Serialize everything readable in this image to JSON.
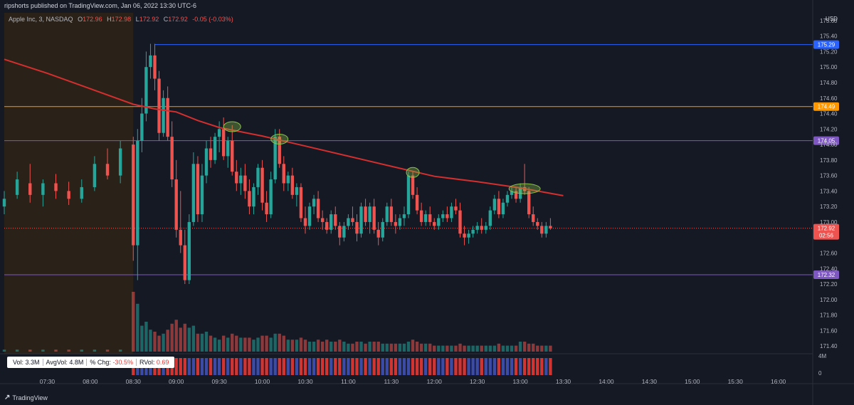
{
  "header": {
    "publisher": "ripshorts published on TradingView.com, Jan 06, 2022 13:30 UTC-6"
  },
  "legend": {
    "symbol": "Apple Inc, 3, NASDAQ",
    "open_key": "O",
    "open": "172.96",
    "high_key": "H",
    "high": "172.98",
    "low_key": "L",
    "low": "172.92",
    "close_key": "C",
    "close": "172.92",
    "change": "-0.05 (-0.03%)"
  },
  "currency": "USD",
  "stats": {
    "vol": "Vol:  3.3M",
    "avgvol": "AvgVol:  4.8M",
    "pct_chg_key": "% Chg:",
    "pct_chg": "-30.5%",
    "rvol_key": "RVol:",
    "rvol": "0.69"
  },
  "brand": {
    "icon": "tradingview-logo-icon",
    "name": "TradingView"
  },
  "colors": {
    "up": "#26a69a",
    "down": "#ef5350",
    "ma": "#d32f2f",
    "blue_line": "#2962ff",
    "orange_line": "#ff9800",
    "purple_line": "#7e57c2",
    "premarket": "#2a2218",
    "highlight": "#8bc34a"
  },
  "chart_data": {
    "type": "candlestick",
    "title": "Apple Inc, 3, NASDAQ",
    "y_axis": {
      "ylim": [
        171.3,
        175.7
      ],
      "ticks": [
        "175.60",
        "175.40",
        "175.20",
        "175.00",
        "174.80",
        "174.60",
        "174.40",
        "174.20",
        "174.00",
        "173.80",
        "173.60",
        "173.40",
        "173.20",
        "173.00",
        "172.60",
        "172.40",
        "172.20",
        "172.00",
        "171.80",
        "171.60",
        "171.40"
      ]
    },
    "x_axis": {
      "ticks": [
        "07:30",
        "08:00",
        "08:30",
        "09:00",
        "09:30",
        "10:00",
        "10:30",
        "11:00",
        "11:30",
        "12:00",
        "12:30",
        "13:00",
        "13:30",
        "14:00",
        "14:30",
        "15:00",
        "15:30",
        "16:00"
      ]
    },
    "horizontal_levels": [
      {
        "price": 175.29,
        "label": "175.29",
        "color": "#2962ff"
      },
      {
        "price": 174.49,
        "label": "174.49",
        "color": "#ff9800"
      },
      {
        "price": 174.05,
        "label": "174.05",
        "color": "#7e57c2"
      },
      {
        "price": 172.32,
        "label": "172.32",
        "color": "#7e57c2"
      }
    ],
    "last_price": {
      "price": 172.92,
      "label": "172.92",
      "countdown": "02:56"
    },
    "volume_axis": {
      "max_label": "4M",
      "min_label": "0"
    },
    "moving_average": [
      {
        "t": "07:00",
        "v": 175.1
      },
      {
        "t": "07:30",
        "v": 174.92
      },
      {
        "t": "08:00",
        "v": 174.72
      },
      {
        "t": "08:30",
        "v": 174.52
      },
      {
        "t": "08:45",
        "v": 174.46
      },
      {
        "t": "09:00",
        "v": 174.42
      },
      {
        "t": "09:15",
        "v": 174.31
      },
      {
        "t": "09:30",
        "v": 174.22
      },
      {
        "t": "10:00",
        "v": 174.11
      },
      {
        "t": "10:30",
        "v": 173.98
      },
      {
        "t": "11:00",
        "v": 173.85
      },
      {
        "t": "11:30",
        "v": 173.72
      },
      {
        "t": "12:00",
        "v": 173.59
      },
      {
        "t": "12:30",
        "v": 173.52
      },
      {
        "t": "13:00",
        "v": 173.44
      },
      {
        "t": "13:30",
        "v": 173.34
      }
    ],
    "highlight_touches": [
      {
        "t": "09:39",
        "price": 174.23
      },
      {
        "t": "10:12",
        "price": 174.07
      },
      {
        "t": "11:45",
        "price": 173.64
      },
      {
        "t": "13:03",
        "price": 173.43
      }
    ],
    "candles": [
      {
        "t": "07:00",
        "o": 173.2,
        "h": 173.4,
        "l": 173.1,
        "c": 173.3,
        "v": 0.1
      },
      {
        "t": "07:09",
        "o": 173.35,
        "h": 173.65,
        "l": 173.3,
        "c": 173.55,
        "v": 0.1
      },
      {
        "t": "07:18",
        "o": 173.5,
        "h": 173.75,
        "l": 173.25,
        "c": 173.35,
        "v": 0.1
      },
      {
        "t": "07:27",
        "o": 173.35,
        "h": 173.55,
        "l": 173.2,
        "c": 173.5,
        "v": 0.1
      },
      {
        "t": "07:36",
        "o": 173.5,
        "h": 173.62,
        "l": 173.3,
        "c": 173.4,
        "v": 0.1
      },
      {
        "t": "07:45",
        "o": 173.4,
        "h": 173.52,
        "l": 173.22,
        "c": 173.3,
        "v": 0.1
      },
      {
        "t": "07:54",
        "o": 173.3,
        "h": 173.55,
        "l": 173.25,
        "c": 173.45,
        "v": 0.1
      },
      {
        "t": "08:03",
        "o": 173.45,
        "h": 173.85,
        "l": 173.4,
        "c": 173.75,
        "v": 0.1
      },
      {
        "t": "08:12",
        "o": 173.75,
        "h": 173.95,
        "l": 173.55,
        "c": 173.6,
        "v": 0.1
      },
      {
        "t": "08:21",
        "o": 173.6,
        "h": 174.05,
        "l": 173.5,
        "c": 173.95,
        "v": 0.1
      },
      {
        "t": "08:30",
        "o": 174.0,
        "h": 174.1,
        "l": 172.5,
        "c": 172.7,
        "v": 3.0
      },
      {
        "t": "08:33",
        "o": 172.7,
        "h": 174.2,
        "l": 172.25,
        "c": 174.05,
        "v": 2.4
      },
      {
        "t": "08:36",
        "o": 174.05,
        "h": 174.6,
        "l": 173.9,
        "c": 174.4,
        "v": 1.3
      },
      {
        "t": "08:39",
        "o": 174.4,
        "h": 175.2,
        "l": 174.3,
        "c": 175.0,
        "v": 1.5
      },
      {
        "t": "08:42",
        "o": 175.0,
        "h": 175.3,
        "l": 174.85,
        "c": 175.15,
        "v": 1.1
      },
      {
        "t": "08:45",
        "o": 175.15,
        "h": 175.3,
        "l": 174.7,
        "c": 174.85,
        "v": 1.0
      },
      {
        "t": "08:48",
        "o": 174.85,
        "h": 174.95,
        "l": 174.05,
        "c": 174.15,
        "v": 0.8
      },
      {
        "t": "08:51",
        "o": 174.15,
        "h": 174.7,
        "l": 174.1,
        "c": 174.6,
        "v": 0.9
      },
      {
        "t": "08:54",
        "o": 174.6,
        "h": 174.75,
        "l": 174.05,
        "c": 174.1,
        "v": 1.1
      },
      {
        "t": "08:57",
        "o": 174.1,
        "h": 174.3,
        "l": 173.45,
        "c": 173.55,
        "v": 1.4
      },
      {
        "t": "09:00",
        "o": 173.55,
        "h": 173.8,
        "l": 172.8,
        "c": 172.9,
        "v": 1.6
      },
      {
        "t": "09:03",
        "o": 172.9,
        "h": 173.4,
        "l": 172.6,
        "c": 172.7,
        "v": 1.2
      },
      {
        "t": "09:06",
        "o": 172.7,
        "h": 172.9,
        "l": 172.2,
        "c": 172.25,
        "v": 1.4
      },
      {
        "t": "09:09",
        "o": 172.25,
        "h": 173.1,
        "l": 172.2,
        "c": 173.0,
        "v": 1.2
      },
      {
        "t": "09:12",
        "o": 173.0,
        "h": 173.9,
        "l": 172.95,
        "c": 173.75,
        "v": 1.3
      },
      {
        "t": "09:15",
        "o": 173.75,
        "h": 173.85,
        "l": 173.0,
        "c": 173.1,
        "v": 0.9
      },
      {
        "t": "09:18",
        "o": 173.1,
        "h": 173.75,
        "l": 173.0,
        "c": 173.6,
        "v": 0.9
      },
      {
        "t": "09:21",
        "o": 173.6,
        "h": 174.05,
        "l": 173.5,
        "c": 173.95,
        "v": 1.0
      },
      {
        "t": "09:24",
        "o": 173.95,
        "h": 174.1,
        "l": 173.7,
        "c": 173.8,
        "v": 0.8
      },
      {
        "t": "09:27",
        "o": 173.8,
        "h": 174.15,
        "l": 173.75,
        "c": 174.1,
        "v": 0.7
      },
      {
        "t": "09:30",
        "o": 174.1,
        "h": 174.3,
        "l": 173.9,
        "c": 174.2,
        "v": 0.6
      },
      {
        "t": "09:33",
        "o": 174.2,
        "h": 174.35,
        "l": 173.8,
        "c": 173.85,
        "v": 0.8
      },
      {
        "t": "09:36",
        "o": 173.85,
        "h": 174.1,
        "l": 173.7,
        "c": 174.05,
        "v": 0.7
      },
      {
        "t": "09:39",
        "o": 174.05,
        "h": 174.25,
        "l": 173.6,
        "c": 173.65,
        "v": 0.9
      },
      {
        "t": "09:42",
        "o": 173.65,
        "h": 173.8,
        "l": 173.4,
        "c": 173.5,
        "v": 0.8
      },
      {
        "t": "09:45",
        "o": 173.5,
        "h": 173.7,
        "l": 173.35,
        "c": 173.6,
        "v": 0.7
      },
      {
        "t": "09:48",
        "o": 173.6,
        "h": 173.75,
        "l": 173.3,
        "c": 173.4,
        "v": 0.7
      },
      {
        "t": "09:51",
        "o": 173.4,
        "h": 173.55,
        "l": 173.1,
        "c": 173.2,
        "v": 0.7
      },
      {
        "t": "09:54",
        "o": 173.2,
        "h": 173.5,
        "l": 173.1,
        "c": 173.45,
        "v": 0.6
      },
      {
        "t": "09:57",
        "o": 173.45,
        "h": 173.75,
        "l": 173.35,
        "c": 173.7,
        "v": 0.7
      },
      {
        "t": "10:00",
        "o": 173.7,
        "h": 173.8,
        "l": 173.15,
        "c": 173.25,
        "v": 0.8
      },
      {
        "t": "10:03",
        "o": 173.25,
        "h": 173.4,
        "l": 173.0,
        "c": 173.1,
        "v": 0.8
      },
      {
        "t": "10:06",
        "o": 173.1,
        "h": 173.65,
        "l": 173.05,
        "c": 173.55,
        "v": 0.7
      },
      {
        "t": "10:09",
        "o": 173.55,
        "h": 174.2,
        "l": 173.5,
        "c": 174.1,
        "v": 0.9
      },
      {
        "t": "10:12",
        "o": 174.1,
        "h": 174.2,
        "l": 173.7,
        "c": 173.75,
        "v": 0.9
      },
      {
        "t": "10:15",
        "o": 173.75,
        "h": 173.85,
        "l": 173.4,
        "c": 173.5,
        "v": 0.8
      },
      {
        "t": "10:18",
        "o": 173.5,
        "h": 173.65,
        "l": 173.4,
        "c": 173.6,
        "v": 0.6
      },
      {
        "t": "10:21",
        "o": 173.6,
        "h": 173.7,
        "l": 173.3,
        "c": 173.35,
        "v": 0.6
      },
      {
        "t": "10:24",
        "o": 173.35,
        "h": 173.5,
        "l": 173.2,
        "c": 173.45,
        "v": 0.6
      },
      {
        "t": "10:27",
        "o": 173.45,
        "h": 173.5,
        "l": 173.0,
        "c": 173.05,
        "v": 0.7
      },
      {
        "t": "10:30",
        "o": 173.05,
        "h": 173.2,
        "l": 172.85,
        "c": 172.95,
        "v": 0.6
      },
      {
        "t": "10:33",
        "o": 172.95,
        "h": 173.25,
        "l": 172.9,
        "c": 173.2,
        "v": 0.5
      },
      {
        "t": "10:36",
        "o": 173.2,
        "h": 173.35,
        "l": 173.1,
        "c": 173.3,
        "v": 0.5
      },
      {
        "t": "10:39",
        "o": 173.3,
        "h": 173.4,
        "l": 173.0,
        "c": 173.05,
        "v": 0.6
      },
      {
        "t": "10:42",
        "o": 173.05,
        "h": 173.15,
        "l": 172.9,
        "c": 173.0,
        "v": 0.5
      },
      {
        "t": "10:45",
        "o": 173.0,
        "h": 173.05,
        "l": 172.85,
        "c": 172.9,
        "v": 0.6
      },
      {
        "t": "10:48",
        "o": 172.9,
        "h": 173.15,
        "l": 172.85,
        "c": 173.1,
        "v": 0.5
      },
      {
        "t": "10:51",
        "o": 173.1,
        "h": 173.2,
        "l": 172.9,
        "c": 172.95,
        "v": 0.5
      },
      {
        "t": "10:54",
        "o": 172.95,
        "h": 173.0,
        "l": 172.7,
        "c": 172.8,
        "v": 0.6
      },
      {
        "t": "10:57",
        "o": 172.8,
        "h": 173.0,
        "l": 172.75,
        "c": 172.95,
        "v": 0.5
      },
      {
        "t": "11:00",
        "o": 172.95,
        "h": 173.1,
        "l": 172.9,
        "c": 173.05,
        "v": 0.4
      },
      {
        "t": "11:03",
        "o": 173.05,
        "h": 173.2,
        "l": 172.95,
        "c": 173.0,
        "v": 0.4
      },
      {
        "t": "11:06",
        "o": 173.0,
        "h": 173.1,
        "l": 172.75,
        "c": 172.85,
        "v": 0.5
      },
      {
        "t": "11:09",
        "o": 172.85,
        "h": 173.25,
        "l": 172.8,
        "c": 173.2,
        "v": 0.5
      },
      {
        "t": "11:12",
        "o": 173.2,
        "h": 173.3,
        "l": 172.95,
        "c": 173.0,
        "v": 0.4
      },
      {
        "t": "11:15",
        "o": 173.0,
        "h": 173.25,
        "l": 172.85,
        "c": 173.2,
        "v": 0.5
      },
      {
        "t": "11:18",
        "o": 173.2,
        "h": 173.3,
        "l": 172.85,
        "c": 172.9,
        "v": 0.5
      },
      {
        "t": "11:21",
        "o": 172.9,
        "h": 173.0,
        "l": 172.7,
        "c": 172.8,
        "v": 0.5
      },
      {
        "t": "11:24",
        "o": 172.8,
        "h": 173.05,
        "l": 172.75,
        "c": 173.0,
        "v": 0.4
      },
      {
        "t": "11:27",
        "o": 173.0,
        "h": 173.25,
        "l": 172.95,
        "c": 173.2,
        "v": 0.4
      },
      {
        "t": "11:30",
        "o": 173.2,
        "h": 173.3,
        "l": 172.95,
        "c": 173.0,
        "v": 0.4
      },
      {
        "t": "11:33",
        "o": 173.0,
        "h": 173.1,
        "l": 172.85,
        "c": 172.95,
        "v": 0.4
      },
      {
        "t": "11:36",
        "o": 172.95,
        "h": 173.1,
        "l": 172.9,
        "c": 173.05,
        "v": 0.4
      },
      {
        "t": "11:39",
        "o": 173.05,
        "h": 173.2,
        "l": 172.95,
        "c": 173.1,
        "v": 0.4
      },
      {
        "t": "11:42",
        "o": 173.1,
        "h": 173.65,
        "l": 173.05,
        "c": 173.6,
        "v": 0.5
      },
      {
        "t": "11:45",
        "o": 173.6,
        "h": 173.65,
        "l": 173.3,
        "c": 173.35,
        "v": 0.6
      },
      {
        "t": "11:48",
        "o": 173.35,
        "h": 173.45,
        "l": 173.1,
        "c": 173.15,
        "v": 0.5
      },
      {
        "t": "11:51",
        "o": 173.15,
        "h": 173.25,
        "l": 172.95,
        "c": 173.0,
        "v": 0.4
      },
      {
        "t": "11:54",
        "o": 173.0,
        "h": 173.15,
        "l": 172.95,
        "c": 173.1,
        "v": 0.4
      },
      {
        "t": "11:57",
        "o": 173.1,
        "h": 173.2,
        "l": 172.95,
        "c": 173.0,
        "v": 0.4
      },
      {
        "t": "12:00",
        "o": 173.0,
        "h": 173.05,
        "l": 172.9,
        "c": 172.95,
        "v": 0.3
      },
      {
        "t": "12:03",
        "o": 172.95,
        "h": 173.1,
        "l": 172.9,
        "c": 173.05,
        "v": 0.3
      },
      {
        "t": "12:06",
        "o": 173.05,
        "h": 173.15,
        "l": 173.0,
        "c": 173.1,
        "v": 0.3
      },
      {
        "t": "12:09",
        "o": 173.1,
        "h": 173.2,
        "l": 173.0,
        "c": 173.05,
        "v": 0.3
      },
      {
        "t": "12:12",
        "o": 173.05,
        "h": 173.25,
        "l": 173.0,
        "c": 173.2,
        "v": 0.3
      },
      {
        "t": "12:15",
        "o": 173.2,
        "h": 173.3,
        "l": 173.1,
        "c": 173.15,
        "v": 0.3
      },
      {
        "t": "12:18",
        "o": 173.15,
        "h": 173.25,
        "l": 172.8,
        "c": 172.85,
        "v": 0.4
      },
      {
        "t": "12:21",
        "o": 172.85,
        "h": 172.95,
        "l": 172.7,
        "c": 172.8,
        "v": 0.3
      },
      {
        "t": "12:24",
        "o": 172.8,
        "h": 172.9,
        "l": 172.72,
        "c": 172.85,
        "v": 0.3
      },
      {
        "t": "12:27",
        "o": 172.85,
        "h": 172.95,
        "l": 172.8,
        "c": 172.9,
        "v": 0.3
      },
      {
        "t": "12:30",
        "o": 172.9,
        "h": 173.0,
        "l": 172.85,
        "c": 172.95,
        "v": 0.3
      },
      {
        "t": "12:33",
        "o": 172.95,
        "h": 173.05,
        "l": 172.85,
        "c": 172.9,
        "v": 0.3
      },
      {
        "t": "12:36",
        "o": 172.9,
        "h": 173.0,
        "l": 172.85,
        "c": 172.95,
        "v": 0.3
      },
      {
        "t": "12:39",
        "o": 172.95,
        "h": 173.2,
        "l": 172.9,
        "c": 173.15,
        "v": 0.3
      },
      {
        "t": "12:42",
        "o": 173.15,
        "h": 173.35,
        "l": 173.1,
        "c": 173.3,
        "v": 0.3
      },
      {
        "t": "12:45",
        "o": 173.3,
        "h": 173.4,
        "l": 173.05,
        "c": 173.1,
        "v": 0.4
      },
      {
        "t": "12:48",
        "o": 173.1,
        "h": 173.3,
        "l": 173.05,
        "c": 173.25,
        "v": 0.3
      },
      {
        "t": "12:51",
        "o": 173.25,
        "h": 173.4,
        "l": 173.2,
        "c": 173.35,
        "v": 0.3
      },
      {
        "t": "12:54",
        "o": 173.35,
        "h": 173.45,
        "l": 173.3,
        "c": 173.4,
        "v": 0.3
      },
      {
        "t": "12:57",
        "o": 173.4,
        "h": 173.45,
        "l": 173.25,
        "c": 173.3,
        "v": 0.3
      },
      {
        "t": "13:00",
        "o": 173.3,
        "h": 173.5,
        "l": 173.25,
        "c": 173.45,
        "v": 0.5
      },
      {
        "t": "13:03",
        "o": 173.45,
        "h": 173.75,
        "l": 173.35,
        "c": 173.4,
        "v": 0.5
      },
      {
        "t": "13:06",
        "o": 173.4,
        "h": 173.45,
        "l": 173.05,
        "c": 173.1,
        "v": 0.4
      },
      {
        "t": "13:09",
        "o": 173.1,
        "h": 173.2,
        "l": 172.95,
        "c": 173.0,
        "v": 0.4
      },
      {
        "t": "13:12",
        "o": 173.0,
        "h": 173.05,
        "l": 172.9,
        "c": 172.95,
        "v": 0.3
      },
      {
        "t": "13:15",
        "o": 172.95,
        "h": 173.0,
        "l": 172.8,
        "c": 172.85,
        "v": 0.3
      },
      {
        "t": "13:18",
        "o": 172.85,
        "h": 173.0,
        "l": 172.8,
        "c": 172.95,
        "v": 0.3
      },
      {
        "t": "13:21",
        "o": 172.95,
        "h": 173.05,
        "l": 172.9,
        "c": 172.92,
        "v": 0.3
      }
    ]
  }
}
